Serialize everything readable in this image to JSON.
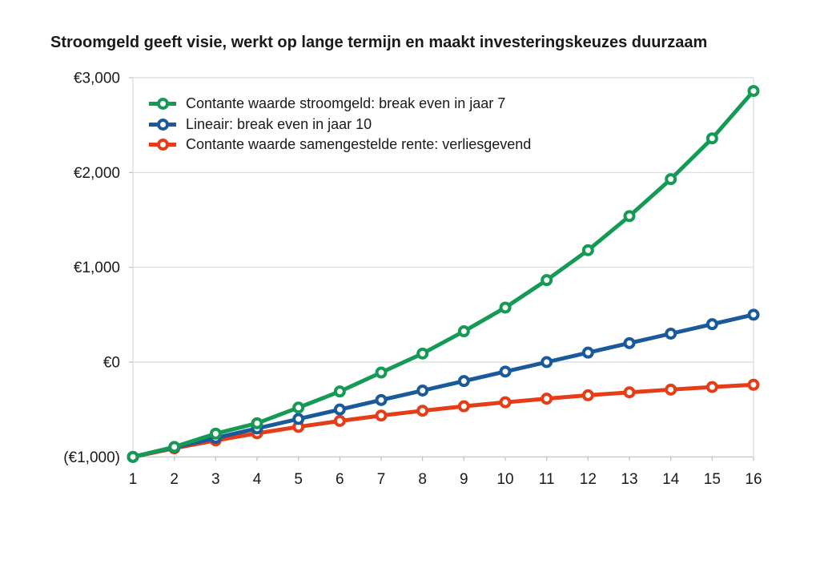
{
  "title": "Stroomgeld geeft visie, werkt op lange termijn en maakt investeringskeuzes duurzaam",
  "colors": {
    "green": "#149a55",
    "blue": "#1a5a9b",
    "red": "#e43d17",
    "gridline": "#d9d9d9",
    "axis_line": "#bfbfbf",
    "text": "#1a1a1a",
    "background": "#ffffff"
  },
  "legend": {
    "items": [
      {
        "label": "Contante waarde stroomgeld: break even in jaar 7",
        "color_key": "green"
      },
      {
        "label": "Lineair: break even in jaar 10",
        "color_key": "blue"
      },
      {
        "label": "Contante waarde samengestelde rente: verliesgevend",
        "color_key": "red"
      }
    ]
  },
  "chart_data": {
    "type": "line",
    "title": "Stroomgeld geeft visie, werkt op lange termijn en maakt investeringskeuzes duurzaam",
    "x": [
      1,
      2,
      3,
      4,
      5,
      6,
      7,
      8,
      9,
      10,
      11,
      12,
      13,
      14,
      15,
      16
    ],
    "x_tick_labels": [
      "1",
      "2",
      "3",
      "4",
      "5",
      "6",
      "7",
      "8",
      "9",
      "10",
      "11",
      "12",
      "13",
      "14",
      "15",
      "16"
    ],
    "series": [
      {
        "name": "Contante waarde stroomgeld: break even in jaar 7",
        "color_key": "green",
        "values": [
          -1000,
          -895,
          -755,
          -645,
          -480,
          -310,
          -110,
          90,
          325,
          575,
          865,
          1180,
          1540,
          1930,
          2360,
          2860
        ]
      },
      {
        "name": "Lineair: break even in jaar 10",
        "color_key": "blue",
        "values": [
          -1000,
          -900,
          -800,
          -700,
          -600,
          -500,
          -400,
          -300,
          -200,
          -100,
          0,
          100,
          200,
          300,
          400,
          500
        ]
      },
      {
        "name": "Contante waarde samengestelde rente: verliesgevend",
        "color_key": "red",
        "values": [
          -1000,
          -909,
          -826,
          -751,
          -683,
          -621,
          -564,
          -513,
          -466,
          -424,
          -386,
          -350,
          -319,
          -290,
          -263,
          -239
        ]
      }
    ],
    "y_ticks": [
      {
        "value": 3000,
        "label": "€3,000"
      },
      {
        "value": 2000,
        "label": "€2,000"
      },
      {
        "value": 1000,
        "label": "€1,000"
      },
      {
        "value": 0,
        "label": "€0"
      },
      {
        "value": -1000,
        "label": "(€1,000)"
      }
    ],
    "ylim": [
      -1000,
      3000
    ],
    "xlabel": "",
    "ylabel": "",
    "grid": "horizontal",
    "legend_position": "top-left-inside",
    "marker": "open-circle"
  }
}
